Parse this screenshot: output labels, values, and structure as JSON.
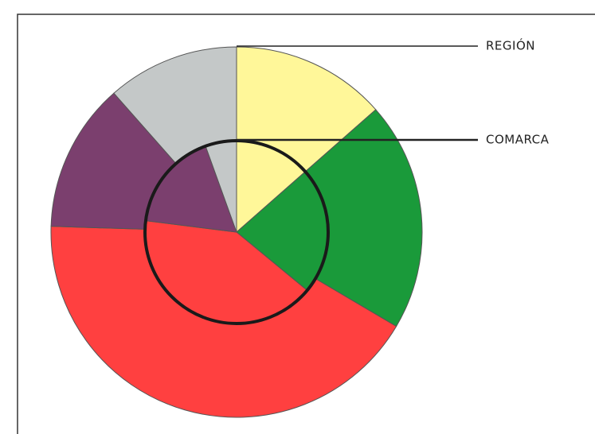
{
  "chart_data": {
    "type": "pie",
    "colors": [
      "#fff799",
      "#1a9a3a",
      "#ff4040",
      "#7b3f6e",
      "#c4c8c8"
    ],
    "series": [
      {
        "name": "REGIÓN",
        "values": [
          13.5,
          20,
          42,
          13,
          11.5
        ]
      },
      {
        "name": "COMARCA",
        "values": [
          13.5,
          22.5,
          41,
          17.5,
          5.5
        ]
      }
    ]
  }
}
